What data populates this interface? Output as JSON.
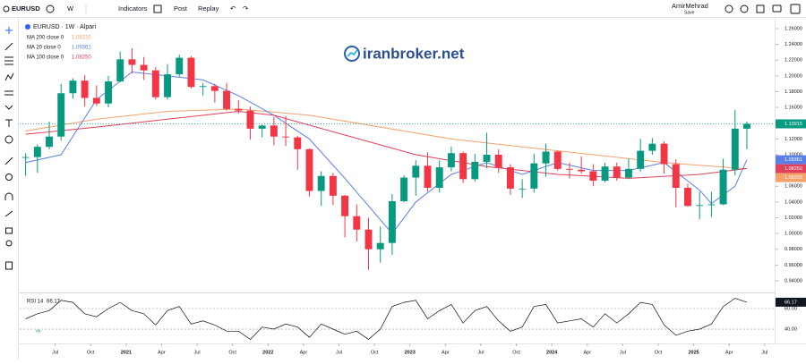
{
  "toolbar": {
    "symbol": "EURUSD",
    "interval": "W",
    "indicators": "Indicators",
    "post": "Post",
    "replay": "Replay",
    "user": "AmirMehrad",
    "save": "Save"
  },
  "watermark": "iranbroker.net",
  "chart_data": {
    "type": "candlestick",
    "title": "EURUSD · 1W · Alpari",
    "up_color": "#089981",
    "down_color": "#f23645",
    "candles": {
      "x": [
        "2020-04",
        "2020-05",
        "2020-06",
        "2020-07",
        "2020-08",
        "2020-09",
        "2020-10",
        "2020-11",
        "2020-12",
        "2021-01",
        "2021-02",
        "2021-03",
        "2021-04",
        "2021-05",
        "2021-06",
        "2021-07",
        "2021-08",
        "2021-09",
        "2021-10",
        "2021-11",
        "2021-12",
        "2022-01",
        "2022-02",
        "2022-03",
        "2022-04",
        "2022-05",
        "2022-06",
        "2022-07",
        "2022-08",
        "2022-09",
        "2022-10",
        "2022-11",
        "2022-12",
        "2023-01",
        "2023-02",
        "2023-03",
        "2023-04",
        "2023-05",
        "2023-06",
        "2023-07",
        "2023-08",
        "2023-09",
        "2023-10",
        "2023-11",
        "2023-12",
        "2024-01",
        "2024-02",
        "2024-03",
        "2024-04",
        "2024-05",
        "2024-06",
        "2024-07",
        "2024-08",
        "2024-09",
        "2024-10",
        "2024-11",
        "2024-12",
        "2025-01",
        "2025-02",
        "2025-03",
        "2025-04",
        "2025-05"
      ],
      "open": [
        1.096,
        1.097,
        1.11,
        1.123,
        1.178,
        1.194,
        1.172,
        1.165,
        1.193,
        1.221,
        1.214,
        1.207,
        1.173,
        1.202,
        1.223,
        1.186,
        1.187,
        1.181,
        1.158,
        1.156,
        1.133,
        1.137,
        1.123,
        1.122,
        1.107,
        1.054,
        1.073,
        1.048,
        1.022,
        1.005,
        0.98,
        0.988,
        1.041,
        1.071,
        1.086,
        1.058,
        1.084,
        1.102,
        1.069,
        1.091,
        1.1,
        1.084,
        1.057,
        1.057,
        1.089,
        1.104,
        1.082,
        1.081,
        1.079,
        1.067,
        1.085,
        1.071,
        1.082,
        1.105,
        1.114,
        1.088,
        1.058,
        1.035,
        1.036,
        1.037,
        1.081,
        1.133
      ],
      "high": [
        1.102,
        1.113,
        1.142,
        1.19,
        1.197,
        1.201,
        1.188,
        1.2,
        1.231,
        1.235,
        1.224,
        1.211,
        1.215,
        1.227,
        1.225,
        1.191,
        1.19,
        1.191,
        1.169,
        1.161,
        1.138,
        1.148,
        1.149,
        1.124,
        1.108,
        1.079,
        1.077,
        1.049,
        1.037,
        1.02,
        1.009,
        1.05,
        1.074,
        1.093,
        1.103,
        1.093,
        1.11,
        1.104,
        1.101,
        1.128,
        1.107,
        1.088,
        1.069,
        1.101,
        1.114,
        1.105,
        1.09,
        1.098,
        1.088,
        1.09,
        1.09,
        1.095,
        1.12,
        1.121,
        1.117,
        1.094,
        1.063,
        1.053,
        1.053,
        1.095,
        1.157,
        1.142
      ],
      "low": [
        1.073,
        1.077,
        1.107,
        1.118,
        1.171,
        1.161,
        1.162,
        1.16,
        1.192,
        1.203,
        1.195,
        1.17,
        1.17,
        1.199,
        1.184,
        1.175,
        1.166,
        1.156,
        1.152,
        1.119,
        1.122,
        1.112,
        1.111,
        1.081,
        1.047,
        1.035,
        1.036,
        0.995,
        0.99,
        0.954,
        0.963,
        0.973,
        1.04,
        1.048,
        1.053,
        1.052,
        1.079,
        1.064,
        1.066,
        1.083,
        1.077,
        1.049,
        1.045,
        1.052,
        1.072,
        1.08,
        1.07,
        1.076,
        1.06,
        1.065,
        1.067,
        1.069,
        1.078,
        1.1,
        1.076,
        1.033,
        1.034,
        1.018,
        1.021,
        1.036,
        1.074,
        1.107
      ],
      "close": [
        1.097,
        1.11,
        1.123,
        1.178,
        1.194,
        1.172,
        1.165,
        1.193,
        1.221,
        1.214,
        1.207,
        1.173,
        1.202,
        1.223,
        1.186,
        1.187,
        1.181,
        1.158,
        1.156,
        1.133,
        1.137,
        1.123,
        1.122,
        1.107,
        1.054,
        1.073,
        1.048,
        1.022,
        1.005,
        0.98,
        0.988,
        1.041,
        1.071,
        1.086,
        1.058,
        1.084,
        1.102,
        1.069,
        1.091,
        1.1,
        1.084,
        1.057,
        1.057,
        1.089,
        1.104,
        1.082,
        1.081,
        1.079,
        1.067,
        1.085,
        1.071,
        1.082,
        1.105,
        1.114,
        1.088,
        1.058,
        1.035,
        1.036,
        1.037,
        1.081,
        1.133,
        1.13915
      ],
      "last_label": "1.13915"
    },
    "series": [
      {
        "name": "MA 200 close 0",
        "color": "#f4a16c",
        "last_label": "1.08220",
        "x": [
          "2020-04",
          "2020-10",
          "2021-04",
          "2021-10",
          "2022-04",
          "2022-10",
          "2023-04",
          "2023-10",
          "2024-04",
          "2024-10",
          "2025-05"
        ],
        "values": [
          1.13,
          1.145,
          1.155,
          1.158,
          1.15,
          1.135,
          1.12,
          1.11,
          1.1,
          1.09,
          1.0822
        ]
      },
      {
        "name": "MA 20 close 0",
        "color": "#5b7fe8",
        "last_label": "1.09361",
        "x": [
          "2020-04",
          "2020-07",
          "2020-10",
          "2021-01",
          "2021-04",
          "2021-07",
          "2021-10",
          "2022-01",
          "2022-04",
          "2022-07",
          "2022-11",
          "2023-01",
          "2023-04",
          "2023-07",
          "2023-10",
          "2024-01",
          "2024-04",
          "2024-07",
          "2024-10",
          "2025-01",
          "2025-02",
          "2025-04",
          "2025-05"
        ],
        "values": [
          1.09,
          1.1,
          1.17,
          1.205,
          1.2,
          1.195,
          1.175,
          1.15,
          1.12,
          1.07,
          1.0,
          1.04,
          1.075,
          1.09,
          1.075,
          1.09,
          1.08,
          1.08,
          1.09,
          1.055,
          1.038,
          1.06,
          1.09361
        ]
      },
      {
        "name": "MA 100 close 0",
        "color": "#e0405a",
        "last_label": "1.08250",
        "x": [
          "2020-04",
          "2020-10",
          "2021-04",
          "2021-10",
          "2022-01",
          "2022-07",
          "2023-01",
          "2023-07",
          "2024-01",
          "2024-07",
          "2025-01",
          "2025-05"
        ],
        "values": [
          1.126,
          1.135,
          1.145,
          1.155,
          1.15,
          1.125,
          1.1,
          1.085,
          1.075,
          1.07,
          1.075,
          1.0825
        ]
      }
    ],
    "xlim": [
      "2020-04",
      "2025-08"
    ],
    "xticks": [
      {
        "value": "2020-07",
        "label": "Jul"
      },
      {
        "value": "2020-10",
        "label": "Oct"
      },
      {
        "value": "2021-01",
        "label": "2021"
      },
      {
        "value": "2021-04",
        "label": "Apr"
      },
      {
        "value": "2021-07",
        "label": "Jul"
      },
      {
        "value": "2021-10",
        "label": "Oct"
      },
      {
        "value": "2022-01",
        "label": "2022"
      },
      {
        "value": "2022-04",
        "label": "Apr"
      },
      {
        "value": "2022-07",
        "label": "Jul"
      },
      {
        "value": "2022-10",
        "label": "Oct"
      },
      {
        "value": "2023-01",
        "label": "2023"
      },
      {
        "value": "2023-04",
        "label": "Apr"
      },
      {
        "value": "2023-07",
        "label": "Jul"
      },
      {
        "value": "2023-10",
        "label": "Oct"
      },
      {
        "value": "2024-01",
        "label": "2024"
      },
      {
        "value": "2024-04",
        "label": "Apr"
      },
      {
        "value": "2024-07",
        "label": "Jul"
      },
      {
        "value": "2024-10",
        "label": "Oct"
      },
      {
        "value": "2025-01",
        "label": "2025"
      },
      {
        "value": "2025-04",
        "label": "Apr"
      },
      {
        "value": "2025-07",
        "label": "Jul"
      }
    ],
    "ylim": [
      0.9275,
      1.2736
    ],
    "yticks": [
      {
        "value": 0.94,
        "label": "0.94000"
      },
      {
        "value": 0.96,
        "label": "0.96000"
      },
      {
        "value": 0.98,
        "label": "0.98000"
      },
      {
        "value": 1.0,
        "label": "1.00000"
      },
      {
        "value": 1.02,
        "label": "1.02000"
      },
      {
        "value": 1.04,
        "label": "1.04000"
      },
      {
        "value": 1.06,
        "label": "1.06000"
      },
      {
        "value": 1.08,
        "label": "1.08000"
      },
      {
        "value": 1.1,
        "label": "1.10000"
      },
      {
        "value": 1.12,
        "label": "1.12000"
      },
      {
        "value": 1.14,
        "label": "1.14000"
      },
      {
        "value": 1.16,
        "label": "1.16000"
      },
      {
        "value": 1.18,
        "label": "1.18000"
      },
      {
        "value": 1.2,
        "label": "1.20000"
      },
      {
        "value": 1.22,
        "label": "1.22000"
      },
      {
        "value": 1.24,
        "label": "1.24000"
      },
      {
        "value": 1.26,
        "label": "1.26000"
      }
    ],
    "grid": false,
    "rsi": {
      "name": "RSI 14",
      "color": "#111111",
      "values": [
        50,
        55,
        58,
        68,
        66,
        55,
        52,
        60,
        66,
        58,
        55,
        44,
        58,
        62,
        45,
        48,
        44,
        38,
        38,
        30,
        42,
        40,
        45,
        42,
        32,
        45,
        40,
        35,
        38,
        30,
        40,
        62,
        66,
        68,
        50,
        58,
        64,
        46,
        58,
        62,
        48,
        38,
        42,
        62,
        64,
        46,
        48,
        50,
        42,
        55,
        46,
        55,
        66,
        64,
        44,
        34,
        38,
        40,
        45,
        62,
        70,
        66.17
      ],
      "ylim": [
        27,
        73.9
      ],
      "yticks": [
        {
          "value": 60,
          "label": "60.00"
        },
        {
          "value": 40,
          "label": "40.00"
        }
      ]
    }
  }
}
